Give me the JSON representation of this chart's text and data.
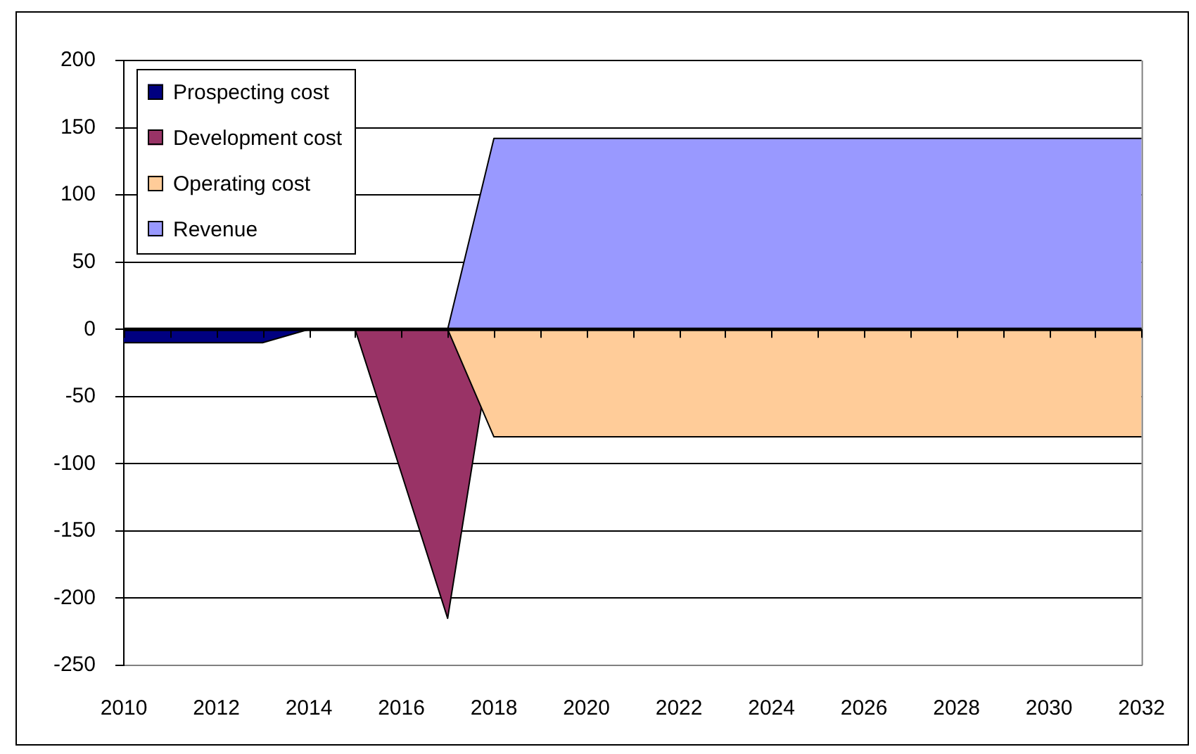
{
  "chart_data": {
    "type": "area",
    "categories": [
      "2010",
      null,
      "2012",
      null,
      "2014",
      null,
      "2016",
      null,
      "2018",
      null,
      "2020",
      null,
      "2022",
      null,
      "2024",
      null,
      "2026",
      null,
      "2028",
      null,
      "2030",
      null,
      "2032"
    ],
    "series": [
      {
        "name": "Prospecting cost",
        "color": "#000080",
        "values": [
          -10,
          -10,
          -10,
          -10,
          0,
          0,
          0,
          0,
          0,
          0,
          0,
          0,
          0,
          0,
          0,
          0,
          0,
          0,
          0,
          0,
          0,
          0,
          0
        ]
      },
      {
        "name": "Development cost",
        "color": "#993366",
        "values": [
          0,
          0,
          0,
          0,
          0,
          0,
          -107,
          -215,
          0,
          0,
          0,
          0,
          0,
          0,
          0,
          0,
          0,
          0,
          0,
          0,
          0,
          0,
          0
        ]
      },
      {
        "name": "Operating cost",
        "color": "#ffcc99",
        "values": [
          0,
          0,
          0,
          0,
          0,
          0,
          0,
          0,
          -80,
          -80,
          -80,
          -80,
          -80,
          -80,
          -80,
          -80,
          -80,
          -80,
          -80,
          -80,
          -80,
          -80,
          -80
        ]
      },
      {
        "name": "Revenue",
        "color": "#9999ff",
        "values": [
          0,
          0,
          0,
          0,
          0,
          0,
          0,
          0,
          142,
          142,
          142,
          142,
          142,
          142,
          142,
          142,
          142,
          142,
          142,
          142,
          142,
          142,
          142
        ]
      }
    ],
    "ylim": [
      -250,
      200
    ],
    "yticks": [
      -250,
      -200,
      -150,
      -100,
      -50,
      0,
      50,
      100,
      150,
      200
    ],
    "grid": "y",
    "legend": "top left"
  }
}
